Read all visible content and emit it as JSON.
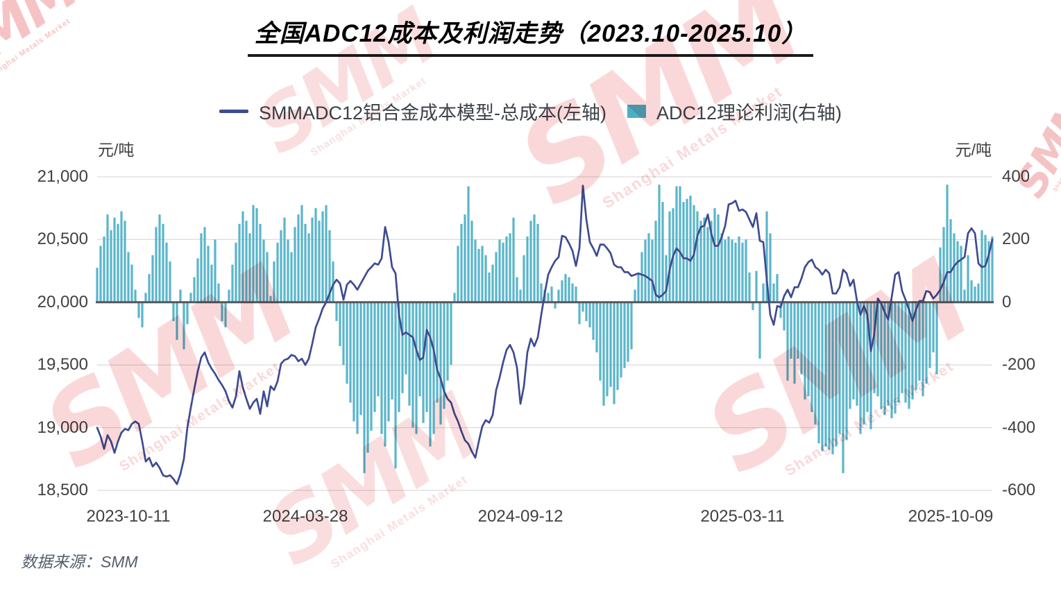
{
  "title": "全国ADC12成本及利润走势（2023.10-2025.10）",
  "legend": [
    {
      "label": "SMMADC12铝合金成本模型-总成本(左轴)",
      "type": "line",
      "color": "#3E4B90"
    },
    {
      "label": "ADC12理论利润(右轴)",
      "type": "bar",
      "color": "#4CAFC5"
    }
  ],
  "left_axis": {
    "unit": "元/吨",
    "tick_labels": [
      "21,000",
      "20,500",
      "20,000",
      "19,500",
      "19,000",
      "18,500"
    ],
    "tick_values": [
      21000,
      20500,
      20000,
      19500,
      19000,
      18500
    ]
  },
  "right_axis": {
    "unit": "元/吨",
    "tick_labels": [
      "400",
      "200",
      "0",
      "-200",
      "-400",
      "-600"
    ],
    "tick_values": [
      400,
      200,
      0,
      -200,
      -400,
      -600
    ]
  },
  "source": "数据来源：SMM",
  "watermark": {
    "text": "SMM",
    "subtext": "Shanghai Metals Market",
    "color": "#e2383f"
  },
  "chart_data": {
    "type": "combo",
    "title": "全国ADC12成本及利润走势（2023.10-2025.10）",
    "x_tick_labels": [
      "2023-10-11",
      "2024-03-28",
      "2024-09-12",
      "2025-03-11",
      "2025-10-09"
    ],
    "x_tick_positions": [
      0.0349,
      0.2326,
      0.4729,
      0.7209,
      0.9535
    ],
    "left_ylim": [
      18500,
      21000
    ],
    "right_ylim": [
      -600,
      400
    ],
    "grid": "horizontal",
    "legend_position": "top-center",
    "series": [
      {
        "name": "SMMADC12铝合金成本模型-总成本(左轴)",
        "type": "line",
        "axis": "left",
        "color": "#3E4B90",
        "values": [
          19000,
          18930,
          18830,
          18940,
          18890,
          18800,
          18890,
          18960,
          18990,
          18980,
          19030,
          19050,
          19030,
          18890,
          18730,
          18760,
          18690,
          18720,
          18680,
          18620,
          18610,
          18620,
          18590,
          18550,
          18630,
          18750,
          19000,
          19160,
          19310,
          19450,
          19560,
          19600,
          19520,
          19470,
          19430,
          19380,
          19340,
          19290,
          19210,
          19160,
          19250,
          19450,
          19320,
          19230,
          19150,
          19200,
          19230,
          19110,
          19290,
          19170,
          19330,
          19300,
          19370,
          19510,
          19540,
          19550,
          19580,
          19570,
          19530,
          19550,
          19500,
          19550,
          19670,
          19800,
          19870,
          19950,
          20000,
          20070,
          20140,
          20180,
          20150,
          20020,
          20140,
          20170,
          20140,
          20100,
          20150,
          20200,
          20250,
          20280,
          20310,
          20300,
          20350,
          20600,
          20480,
          20280,
          20230,
          19900,
          19740,
          19760,
          19740,
          19720,
          19620,
          19540,
          19560,
          19780,
          19720,
          19620,
          19460,
          19390,
          19290,
          19230,
          19200,
          19110,
          19050,
          18970,
          18900,
          18870,
          18810,
          18760,
          18890,
          19010,
          19060,
          19040,
          19100,
          19300,
          19400,
          19520,
          19620,
          19660,
          19600,
          19480,
          19190,
          19330,
          19600,
          19710,
          19650,
          19720,
          19900,
          20070,
          20220,
          20280,
          20330,
          20360,
          20530,
          20520,
          20470,
          20410,
          20290,
          20430,
          20930,
          20660,
          20480,
          20430,
          20370,
          20460,
          20460,
          20430,
          20390,
          20300,
          20280,
          20280,
          20240,
          20240,
          20210,
          20220,
          20230,
          20220,
          20210,
          20190,
          20170,
          20060,
          20040,
          20060,
          20090,
          20260,
          20370,
          20430,
          20400,
          20350,
          20350,
          20330,
          20380,
          20530,
          20600,
          20610,
          20700,
          20550,
          20450,
          20450,
          20520,
          20610,
          20780,
          20790,
          20810,
          20730,
          20740,
          20720,
          20660,
          20600,
          20710,
          20490,
          20480,
          20180,
          19900,
          19820,
          19970,
          19960,
          20050,
          20100,
          20040,
          20120,
          20120,
          20190,
          20280,
          20320,
          20340,
          20280,
          20260,
          20220,
          20260,
          20230,
          20070,
          20070,
          20120,
          20260,
          20230,
          20130,
          20180,
          20010,
          19900,
          19970,
          19900,
          19610,
          19750,
          20030,
          19990,
          19920,
          19860,
          20040,
          20220,
          20240,
          20090,
          20020,
          19940,
          19850,
          19940,
          20010,
          20010,
          20090,
          20080,
          20030,
          20060,
          20100,
          20160,
          20240,
          20240,
          20290,
          20320,
          20340,
          20360,
          20550,
          20590,
          20550,
          20310,
          20280,
          20290,
          20380,
          20500
        ]
      },
      {
        "name": "ADC12理论利润(右轴)",
        "type": "bar",
        "axis": "right",
        "color": "#4CAFC5",
        "values": [
          110,
          180,
          210,
          280,
          230,
          270,
          250,
          290,
          260,
          160,
          120,
          40,
          -50,
          -80,
          30,
          90,
          150,
          240,
          280,
          250,
          190,
          130,
          -60,
          -120,
          40,
          -150,
          -70,
          30,
          80,
          140,
          220,
          240,
          180,
          120,
          200,
          60,
          -60,
          -80,
          40,
          120,
          190,
          250,
          290,
          260,
          220,
          310,
          300,
          250,
          200,
          160,
          20,
          130,
          190,
          230,
          270,
          200,
          160,
          240,
          280,
          310,
          250,
          220,
          270,
          300,
          260,
          290,
          310,
          230,
          130,
          -60,
          -140,
          -200,
          -260,
          -320,
          -380,
          -420,
          -360,
          -545,
          -480,
          -410,
          -350,
          -300,
          -420,
          -460,
          -380,
          -310,
          -530,
          -350,
          -290,
          -230,
          -330,
          -400,
          -420,
          -300,
          -385,
          -350,
          -460,
          -420,
          -320,
          -390,
          -340,
          -250,
          -200,
          30,
          180,
          250,
          280,
          370,
          260,
          200,
          170,
          180,
          150,
          95,
          120,
          160,
          200,
          190,
          210,
          220,
          270,
          80,
          40,
          150,
          210,
          260,
          280,
          250,
          60,
          40,
          30,
          50,
          -20,
          40,
          70,
          90,
          80,
          60,
          50,
          -70,
          -30,
          -60,
          -80,
          -120,
          -160,
          -250,
          -330,
          -300,
          -270,
          -325,
          -280,
          -240,
          -210,
          -190,
          -150,
          40,
          90,
          160,
          200,
          220,
          200,
          260,
          375,
          320,
          150,
          290,
          300,
          370,
          370,
          320,
          330,
          340,
          310,
          290,
          260,
          270,
          240,
          260,
          300,
          280,
          220,
          200,
          210,
          200,
          190,
          210,
          190,
          200,
          95,
          -25,
          100,
          -180,
          60,
          290,
          220,
          60,
          90,
          -50,
          -90,
          -250,
          -180,
          -260,
          -180,
          -230,
          -310,
          -300,
          -350,
          -390,
          -450,
          -475,
          -460,
          -470,
          -485,
          -460,
          -420,
          -545,
          -440,
          -340,
          -310,
          -330,
          -420,
          -390,
          -350,
          -405,
          -290,
          -300,
          -340,
          -360,
          -330,
          -370,
          -355,
          -320,
          -290,
          -320,
          -340,
          -310,
          -280,
          -250,
          -300,
          -260,
          -210,
          -160,
          -230,
          175,
          240,
          375,
          265,
          220,
          195,
          180,
          40,
          150,
          70,
          50,
          60,
          230,
          215,
          195,
          210
        ]
      }
    ]
  }
}
